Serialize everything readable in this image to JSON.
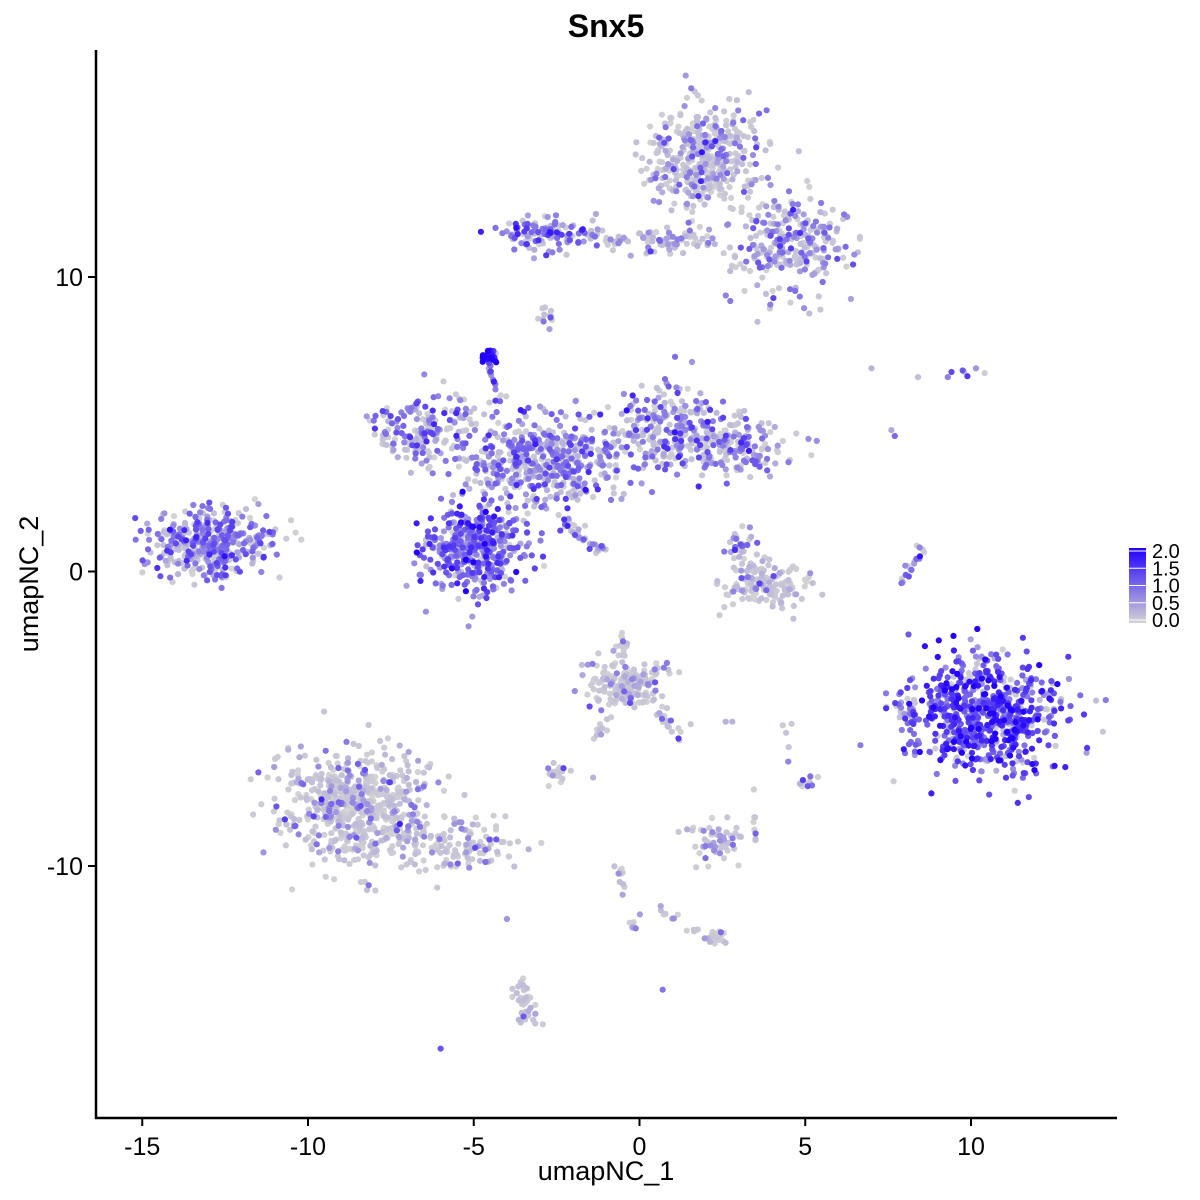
{
  "chart_data": {
    "type": "scatter",
    "title": "Snx5",
    "xlabel": "umapNC_1",
    "ylabel": "umapNC_2",
    "xlim": [
      -16.5,
      14.5
    ],
    "ylim": [
      -18.5,
      17.5
    ],
    "x_ticks": [
      -15,
      -10,
      -5,
      0,
      5,
      10
    ],
    "x_tick_labels": [
      "-15",
      "-10",
      "-5",
      "0",
      "5",
      "10"
    ],
    "y_ticks": [
      -10,
      0,
      10
    ],
    "y_tick_labels": [
      "-10",
      "0",
      "10"
    ],
    "grid": false,
    "legend": {
      "placement": "right",
      "type": "colorbar",
      "min": 0.0,
      "max": 2.0,
      "labels": [
        "2.0",
        "1.5",
        "1.0",
        "0.5",
        "0.0"
      ],
      "low_color": "#d3d3d3",
      "high_color": "#2200ff"
    },
    "point_color_low": "#d3d3d3",
    "point_color_high": "#2200ff",
    "clusters": [
      {
        "cx": -13.0,
        "cy": 1.0,
        "sx": 1.2,
        "sy": 0.8,
        "n": 380,
        "mean_expr": 0.8
      },
      {
        "cx": -5.0,
        "cy": 0.8,
        "sx": 1.0,
        "sy": 1.0,
        "n": 420,
        "mean_expr": 1.0
      },
      {
        "cx": -3.0,
        "cy": 3.8,
        "sx": 1.8,
        "sy": 1.1,
        "n": 520,
        "mean_expr": 0.75
      },
      {
        "cx": -6.5,
        "cy": 4.8,
        "sx": 1.0,
        "sy": 0.8,
        "n": 160,
        "mean_expr": 0.7
      },
      {
        "cx": 0.8,
        "cy": 5.0,
        "sx": 1.0,
        "sy": 0.9,
        "n": 200,
        "mean_expr": 0.7
      },
      {
        "cx": 2.8,
        "cy": 4.2,
        "sx": 1.2,
        "sy": 0.6,
        "n": 180,
        "mean_expr": 0.7
      },
      {
        "cx": -4.5,
        "cy": 7.3,
        "sx": 0.15,
        "sy": 0.15,
        "n": 25,
        "mean_expr": 1.9
      },
      {
        "cx": 2.0,
        "cy": 14.0,
        "sx": 1.2,
        "sy": 1.2,
        "n": 420,
        "mean_expr": 0.5
      },
      {
        "cx": 4.6,
        "cy": 11.0,
        "sx": 1.2,
        "sy": 1.1,
        "n": 260,
        "mean_expr": 0.6
      },
      {
        "cx": -2.8,
        "cy": 11.4,
        "sx": 1.0,
        "sy": 0.4,
        "n": 110,
        "mean_expr": 0.9
      },
      {
        "cx": 0.5,
        "cy": 11.2,
        "sx": 1.1,
        "sy": 0.3,
        "n": 50,
        "mean_expr": 0.5
      },
      {
        "cx": -2.8,
        "cy": 8.7,
        "sx": 0.2,
        "sy": 0.3,
        "n": 12,
        "mean_expr": 0.4
      },
      {
        "cx": 10.5,
        "cy": -4.8,
        "sx": 1.4,
        "sy": 1.3,
        "n": 700,
        "mean_expr": 1.25
      },
      {
        "cx": 8.0,
        "cy": -4.8,
        "sx": 0.3,
        "sy": 0.5,
        "n": 30,
        "mean_expr": 0.8
      },
      {
        "cx": 3.8,
        "cy": -0.5,
        "sx": 0.8,
        "sy": 0.5,
        "n": 150,
        "mean_expr": 0.3
      },
      {
        "cx": 3.1,
        "cy": 0.9,
        "sx": 0.3,
        "sy": 0.4,
        "n": 30,
        "mean_expr": 0.8
      },
      {
        "cx": -8.5,
        "cy": -8.0,
        "sx": 1.5,
        "sy": 1.3,
        "n": 600,
        "mean_expr": 0.4
      },
      {
        "cx": -5.5,
        "cy": -9.3,
        "sx": 1.1,
        "sy": 0.6,
        "n": 110,
        "mean_expr": 0.45
      },
      {
        "cx": -0.5,
        "cy": -3.8,
        "sx": 0.8,
        "sy": 0.6,
        "n": 180,
        "mean_expr": 0.35
      },
      {
        "cx": -2.5,
        "cy": -6.9,
        "sx": 0.25,
        "sy": 0.25,
        "n": 22,
        "mean_expr": 0.5
      },
      {
        "cx": 2.3,
        "cy": -9.2,
        "sx": 0.5,
        "sy": 0.5,
        "n": 55,
        "mean_expr": 0.5
      },
      {
        "cx": 5.0,
        "cy": -7.2,
        "sx": 0.15,
        "sy": 0.2,
        "n": 10,
        "mean_expr": 0.8
      },
      {
        "cx": -3.5,
        "cy": -14.7,
        "sx": 0.3,
        "sy": 0.6,
        "n": 30,
        "mean_expr": 0.4
      },
      {
        "cx": 2.3,
        "cy": -12.5,
        "sx": 0.3,
        "sy": 0.2,
        "n": 18,
        "mean_expr": 0.4
      },
      {
        "cx": 9.8,
        "cy": 6.8,
        "sx": 0.3,
        "sy": 0.2,
        "n": 6,
        "mean_expr": 0.9
      }
    ],
    "paths": [
      {
        "from": [
          -2.3,
          1.7
        ],
        "to": [
          -1.1,
          0.7
        ],
        "n": 35,
        "mean_expr": 0.6
      },
      {
        "from": [
          -4.6,
          7.0
        ],
        "to": [
          -4.0,
          5.0
        ],
        "n": 14,
        "mean_expr": 0.9
      },
      {
        "from": [
          -11.0,
          1.4
        ],
        "to": [
          -11.8,
          0.9
        ],
        "n": 10,
        "mean_expr": 0.8
      },
      {
        "from": [
          -1.5,
          11.4
        ],
        "to": [
          0.8,
          11.2
        ],
        "n": 20,
        "mean_expr": 0.6
      },
      {
        "from": [
          0.7,
          11.2
        ],
        "to": [
          1.6,
          11.4
        ],
        "n": 10,
        "mean_expr": 0.4
      },
      {
        "from": [
          -0.5,
          -2.0
        ],
        "to": [
          -0.5,
          -4.5
        ],
        "n": 24,
        "mean_expr": 0.3
      },
      {
        "from": [
          0.5,
          -4.8
        ],
        "to": [
          1.2,
          -5.6
        ],
        "n": 16,
        "mean_expr": 0.3
      },
      {
        "from": [
          -1.0,
          -4.9
        ],
        "to": [
          -1.5,
          -6.1
        ],
        "n": 10,
        "mean_expr": 0.3
      },
      {
        "from": [
          -0.7,
          -10.0
        ],
        "to": [
          -0.4,
          -11.2
        ],
        "n": 10,
        "mean_expr": 0.3
      },
      {
        "from": [
          0.6,
          -11.4
        ],
        "to": [
          1.7,
          -12.2
        ],
        "n": 12,
        "mean_expr": 0.3
      },
      {
        "from": [
          0.0,
          -11.5
        ],
        "to": [
          -0.2,
          -12.1
        ],
        "n": 6,
        "mean_expr": 0.5
      },
      {
        "from": [
          -3.5,
          -13.5
        ],
        "to": [
          -3.5,
          -15.4
        ],
        "n": 10,
        "mean_expr": 0.3
      },
      {
        "from": [
          8.6,
          1.0
        ],
        "to": [
          7.9,
          -0.4
        ],
        "n": 18,
        "mean_expr": 0.7
      },
      {
        "from": [
          4.4,
          -5.0
        ],
        "to": [
          4.5,
          -6.8
        ],
        "n": 6,
        "mean_expr": 0.3
      },
      {
        "from": [
          3.4,
          -7.5
        ],
        "to": [
          3.5,
          -9.3
        ],
        "n": 8,
        "mean_expr": 0.3
      },
      {
        "from": [
          3.2,
          5.5
        ],
        "to": [
          2.2,
          4.4
        ],
        "n": 14,
        "mean_expr": 0.5
      }
    ],
    "singletons": [
      {
        "x": -6.0,
        "y": -16.2,
        "value": 1.2
      },
      {
        "x": 0.7,
        "y": -14.2,
        "value": 0.9
      },
      {
        "x": 7.0,
        "y": 6.9,
        "value": 0.3
      },
      {
        "x": 8.4,
        "y": 6.6,
        "value": 0.2
      },
      {
        "x": 9.3,
        "y": 6.6,
        "value": 0.8
      },
      {
        "x": 7.6,
        "y": 4.8,
        "value": 0.4
      },
      {
        "x": 7.7,
        "y": 4.6,
        "value": 1.0
      },
      {
        "x": -4.0,
        "y": -11.8,
        "value": 0.6
      },
      {
        "x": -1.4,
        "y": -7.0,
        "value": 0.3
      },
      {
        "x": 2.6,
        "y": -5.1,
        "value": 0.3
      },
      {
        "x": 2.8,
        "y": -5.1,
        "value": 0.3
      }
    ]
  }
}
